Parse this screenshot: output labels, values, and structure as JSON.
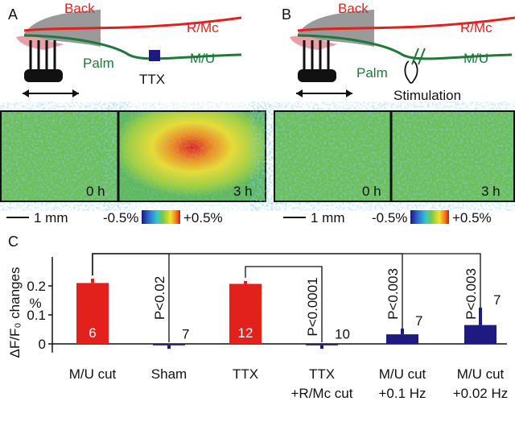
{
  "panels": [
    {
      "label": "A",
      "back": "Back",
      "rmc": "R/Mc",
      "mu": "M/U",
      "palm": "Palm",
      "treatment": "TTX",
      "time_before": "0 h",
      "time_after": "3 h",
      "scale": "1 mm",
      "cmin": "-0.5%",
      "cmax": "+0.5%"
    },
    {
      "label": "B",
      "back": "Back",
      "rmc": "R/Mc",
      "mu": "M/U",
      "palm": "Palm",
      "treatment": "Stimulation",
      "time_before": "0 h",
      "time_after": "3 h",
      "scale": "1 mm",
      "cmin": "-0.5%",
      "cmax": "+0.5%"
    }
  ],
  "chart_data": {
    "type": "bar",
    "panel_label": "C",
    "y_label": "ΔF/F₀ changes",
    "y_unit": "%",
    "categories": [
      [
        "M/U cut"
      ],
      [
        "Sham"
      ],
      [
        "TTX"
      ],
      [
        "TTX",
        "+R/Mc cut"
      ],
      [
        "M/U cut",
        "+0.1 Hz"
      ],
      [
        "M/U cut",
        "+0.02 Hz"
      ]
    ],
    "values": [
      0.21,
      -0.005,
      0.207,
      -0.005,
      0.033,
      0.065
    ],
    "errors": [
      0.015,
      0.012,
      0.01,
      0.012,
      0.02,
      0.06
    ],
    "colors": [
      "#e3211c",
      "#1f1a80",
      "#e3211c",
      "#1f1a80",
      "#1f1a80",
      "#1f1a80"
    ],
    "n": [
      6,
      7,
      12,
      10,
      7,
      7
    ],
    "comparisons": [
      {
        "from": 0,
        "to": 1,
        "label": "P<0.02"
      },
      {
        "from": 2,
        "to": 3,
        "label": "P<0.0001"
      },
      {
        "from": 0,
        "to": 4,
        "label": "P<0.003"
      },
      {
        "from": 0,
        "to": 5,
        "label": "P<0.003"
      }
    ],
    "ylim": [
      -0.03,
      0.3
    ],
    "yticks": [
      0,
      0.1,
      0.2
    ]
  }
}
